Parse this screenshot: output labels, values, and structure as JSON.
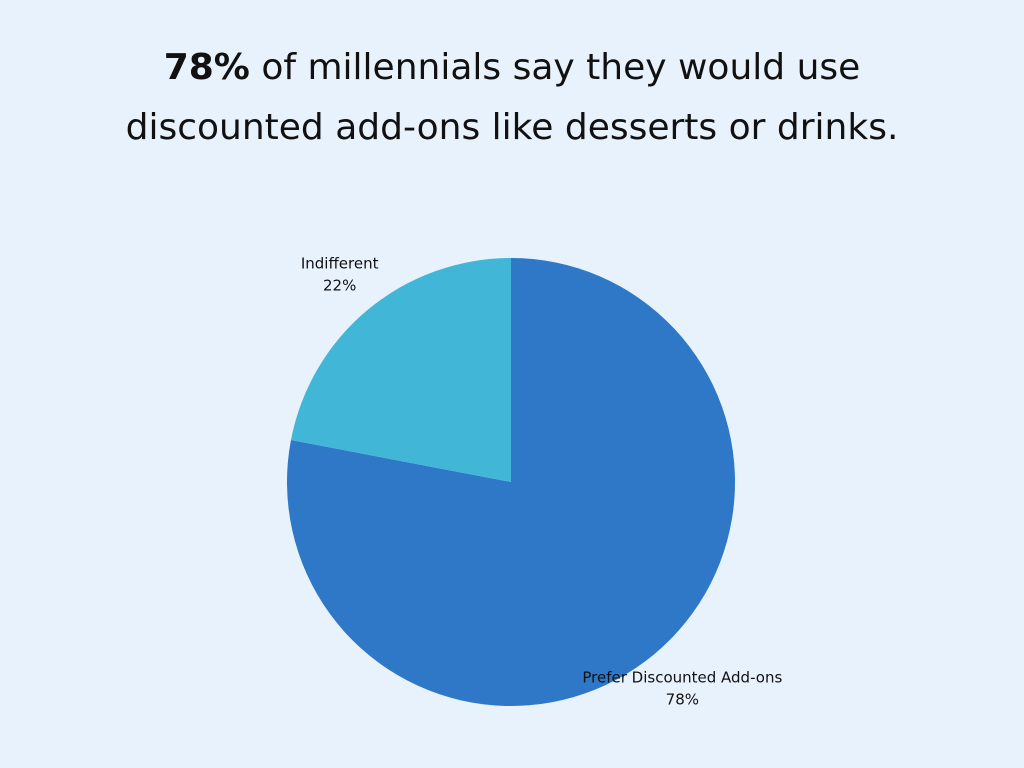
{
  "chart_data": {
    "type": "pie",
    "title_highlight": "78%",
    "title": "of millennials say they would use discounted add-ons like desserts or drinks.",
    "categories": [
      "Prefer Discounted Add-ons",
      "Indifferent"
    ],
    "values": [
      78,
      22
    ],
    "value_labels": [
      "78%",
      "22%"
    ],
    "colors": [
      "#2e78c7",
      "#42b6d6"
    ]
  }
}
